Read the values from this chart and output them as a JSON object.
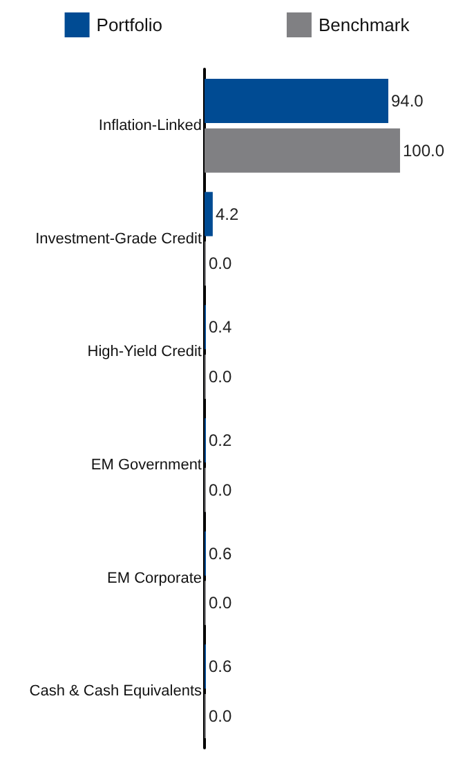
{
  "chart_data": {
    "type": "bar",
    "orientation": "horizontal",
    "categories": [
      "Inflation-Linked",
      "Investment-Grade Credit",
      "High-Yield Credit",
      "EM Government",
      "EM Corporate",
      "Cash & Cash Equivalents"
    ],
    "series": [
      {
        "name": "Portfolio",
        "color": "#004b93",
        "values": [
          94.0,
          4.2,
          0.4,
          0.2,
          0.6,
          0.6
        ],
        "value_labels": [
          "94.0",
          "4.2",
          "0.4",
          "0.2",
          "0.6",
          "0.6"
        ]
      },
      {
        "name": "Benchmark",
        "color": "#808083",
        "values": [
          100.0,
          0.0,
          0.0,
          0.0,
          0.0,
          0.0
        ],
        "value_labels": [
          "100.0",
          "0.0",
          "0.0",
          "0.0",
          "0.0",
          "0.0"
        ]
      }
    ],
    "legend": "top",
    "tick_labels": "y"
  }
}
